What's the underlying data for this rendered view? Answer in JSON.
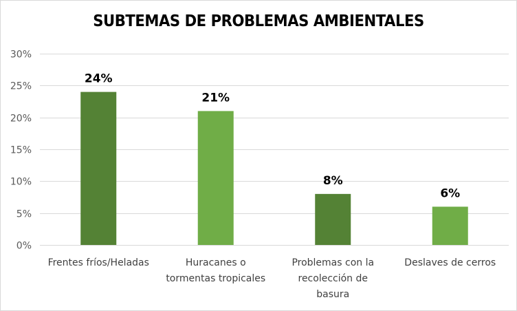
{
  "chart_data": {
    "type": "bar",
    "title": "SUBTEMAS DE PROBLEMAS AMBIENTALES",
    "xlabel": "",
    "ylabel": "",
    "ylim": [
      0,
      30
    ],
    "y_ticks": [
      "0%",
      "5%",
      "10%",
      "15%",
      "20%",
      "25%",
      "30%"
    ],
    "y_tick_values": [
      0,
      5,
      10,
      15,
      20,
      25,
      30
    ],
    "grid": true,
    "legend": "none",
    "categories": [
      [
        "Frentes fríos/Heladas"
      ],
      [
        "Huracanes o",
        "tormentas tropicales"
      ],
      [
        "Problemas con la",
        "recolección de",
        "basura"
      ],
      [
        "Deslaves de cerros"
      ]
    ],
    "values": [
      24,
      21,
      8,
      6
    ],
    "data_labels": [
      "24%",
      "21%",
      "8%",
      "6%"
    ],
    "bar_colors": [
      "#548235",
      "#70ad47",
      "#548235",
      "#70ad47"
    ],
    "grid_color": "#d9d9d9"
  }
}
